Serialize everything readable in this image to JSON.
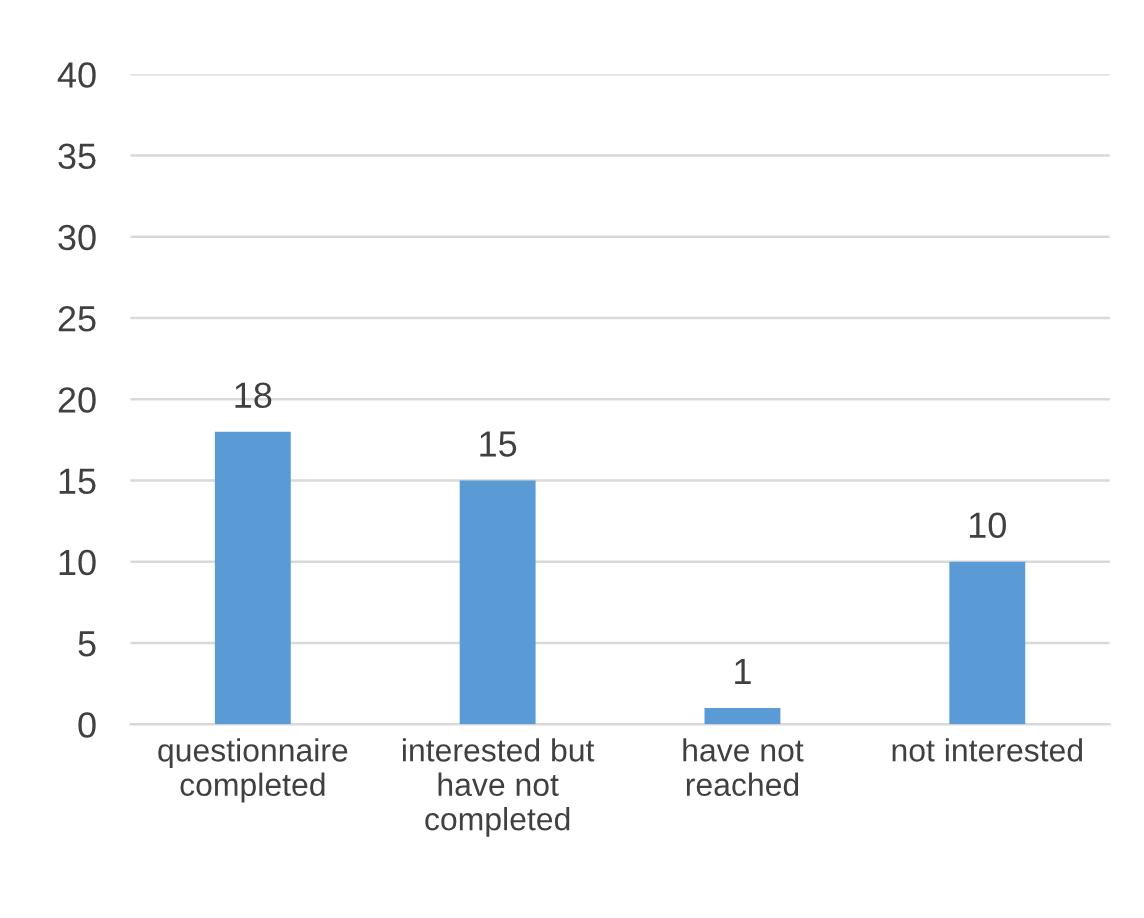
{
  "chart_data": {
    "type": "bar",
    "categories": [
      "questionnaire\ncompleted",
      "interested but\nhave not\ncompleted",
      "have not\nreached",
      "not interested"
    ],
    "values": [
      18,
      15,
      1,
      10
    ],
    "color": "#5b9bd5",
    "ylim": [
      0,
      40
    ],
    "yticks": [
      0,
      5,
      10,
      15,
      20,
      25,
      30,
      35,
      40
    ],
    "grid": "y",
    "data_labels": true
  }
}
